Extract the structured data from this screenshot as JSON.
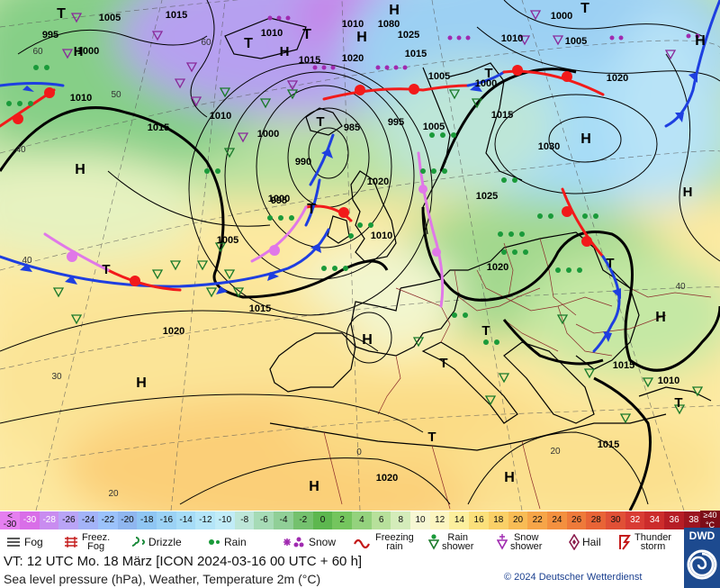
{
  "map": {
    "pressure_labels": [
      {
        "t": "1005"
      },
      {
        "t": "1015"
      },
      {
        "t": "995"
      },
      {
        "t": "1000"
      },
      {
        "t": "1010"
      },
      {
        "t": "1010"
      },
      {
        "t": "1080"
      },
      {
        "t": "1025"
      },
      {
        "t": "1010"
      },
      {
        "t": "1020"
      },
      {
        "t": "1015"
      },
      {
        "t": "1005"
      },
      {
        "t": "1000"
      },
      {
        "t": "1000"
      },
      {
        "t": "1005"
      },
      {
        "t": "1010"
      },
      {
        "t": "1020"
      },
      {
        "t": "1015"
      },
      {
        "t": "1010"
      },
      {
        "t": "1000"
      },
      {
        "t": "985"
      },
      {
        "t": "995"
      },
      {
        "t": "1005"
      },
      {
        "t": "1015"
      },
      {
        "t": "1030"
      },
      {
        "t": "990"
      },
      {
        "t": "995"
      },
      {
        "t": "1000"
      },
      {
        "t": "1025"
      },
      {
        "t": "1005"
      },
      {
        "t": "1010"
      },
      {
        "t": "1020"
      },
      {
        "t": "1015"
      },
      {
        "t": "1020"
      },
      {
        "t": "1020"
      },
      {
        "t": "1015"
      },
      {
        "t": "1010"
      },
      {
        "t": "1015"
      },
      {
        "t": "1020"
      },
      {
        "t": "1015"
      }
    ],
    "highs_lows": [
      {
        "t": "T"
      },
      {
        "t": "H"
      },
      {
        "t": "T"
      },
      {
        "t": "H"
      },
      {
        "t": "H"
      },
      {
        "t": "T"
      },
      {
        "t": "H"
      },
      {
        "t": "T"
      },
      {
        "t": "T"
      },
      {
        "t": "T"
      },
      {
        "t": "T"
      },
      {
        "t": "T"
      },
      {
        "t": "H"
      },
      {
        "t": "H"
      },
      {
        "t": "T"
      },
      {
        "t": "H"
      },
      {
        "t": "T"
      },
      {
        "t": "H"
      },
      {
        "t": "H"
      },
      {
        "t": "T"
      },
      {
        "t": "H"
      },
      {
        "t": "H"
      },
      {
        "t": "T"
      },
      {
        "t": "T"
      },
      {
        "t": "T"
      },
      {
        "t": "T"
      },
      {
        "t": "T"
      },
      {
        "t": "H"
      },
      {
        "t": "T"
      },
      {
        "t": "T"
      },
      {
        "t": "H"
      },
      {
        "t": "H"
      },
      {
        "t": "T"
      },
      {
        "t": "H"
      },
      {
        "t": "T"
      }
    ],
    "grid_labels": [
      {
        "t": "60"
      },
      {
        "t": "60"
      },
      {
        "t": "50"
      },
      {
        "t": "40"
      },
      {
        "t": "40"
      },
      {
        "t": "30"
      },
      {
        "t": "20"
      },
      {
        "t": "0"
      },
      {
        "t": "20"
      },
      {
        "t": "40"
      }
    ]
  },
  "temperature_scale": {
    "unit": "°C",
    "low_label": "<\n-30",
    "high_label": "≥40",
    "values": [
      "-30",
      "-28",
      "-26",
      "-24",
      "-22",
      "-20",
      "-18",
      "-16",
      "-14",
      "-12",
      "-10",
      "-8",
      "-6",
      "-4",
      "-2",
      "0",
      "2",
      "4",
      "6",
      "8",
      "10",
      "12",
      "14",
      "16",
      "18",
      "20",
      "22",
      "24",
      "26",
      "28",
      "30",
      "32",
      "34",
      "36",
      "38"
    ],
    "colors": [
      "#d96ee8",
      "#c98cf0",
      "#b9a4f6",
      "#a3b3f8",
      "#9bc2fb",
      "#8fb6ef",
      "#8fc6f3",
      "#9bd2f5",
      "#a6dcf7",
      "#b4e5f8",
      "#c1ecf7",
      "#bde6d8",
      "#a6dbb6",
      "#90cf97",
      "#74c16e",
      "#5db74f",
      "#74c55e",
      "#94d27d",
      "#b7e09b",
      "#d4ecba",
      "#f6f7d3",
      "#fbf5c0",
      "#fcef9d",
      "#fbe07b",
      "#fad067",
      "#f8bc55",
      "#f6a548",
      "#f3903f",
      "#ee7a3a",
      "#e86436",
      "#e05036",
      "#d93c34",
      "#cc2c2c",
      "#b61d26",
      "#9c1520"
    ]
  },
  "legend": [
    {
      "label": "Fog"
    },
    {
      "label": "Freez.\nFog"
    },
    {
      "label": "Drizzle"
    },
    {
      "label": "Rain"
    },
    {
      "label": "Snow"
    },
    {
      "label": "Freezing\nrain"
    },
    {
      "label": "Rain\nshower"
    },
    {
      "label": "Snow\nshower"
    },
    {
      "label": "Hail"
    },
    {
      "label": "Thunder\nstorm"
    }
  ],
  "info": {
    "valid_time": "VT: 12 UTC Mo.  18 März [ICON 2024-03-16  00 UTC + 60 h]",
    "subtitle": "Sea level pressure (hPa), Weather, Temperature 2m (°C)",
    "copyright": "© 2024 Deutscher Wetterdienst",
    "logo_text": "DWD"
  },
  "colors": {
    "cold_front": "#1e3fe0",
    "warm_front": "#f21a1a",
    "occlusion": "#e078e8",
    "isobar": "#000000",
    "border": "#7a2a2a"
  }
}
